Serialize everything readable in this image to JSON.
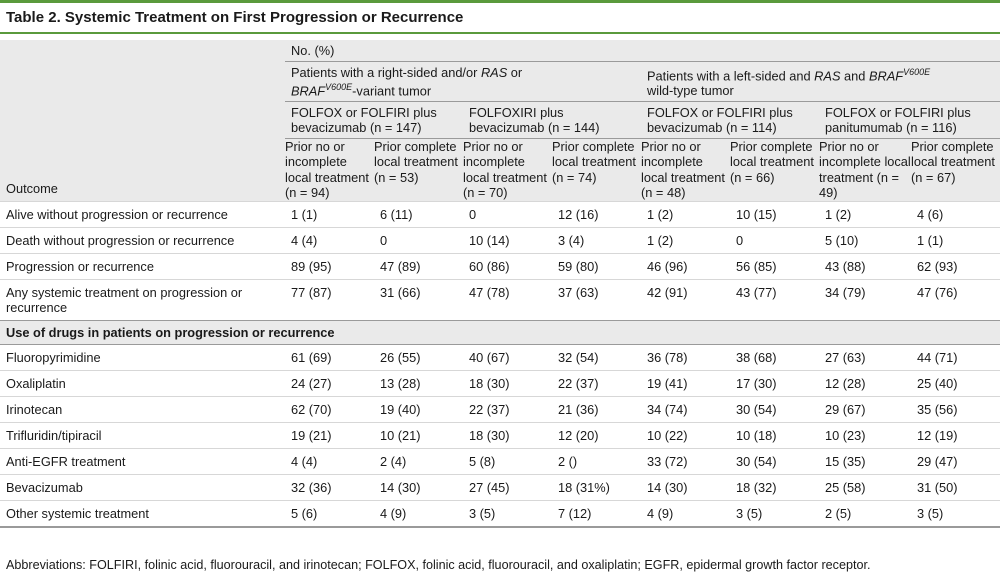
{
  "title": "Table 2. Systemic Treatment on First Progression or Recurrence",
  "header": {
    "no_pct": "No. (%)",
    "outcome": "Outcome",
    "group_right": {
      "pre": "Patients with a right-sided and/or ",
      "ras": "RAS",
      "or": " or ",
      "braf": "BRAF",
      "sup": "V600E",
      "post": "-variant tumor"
    },
    "group_left": {
      "pre": "Patients with a left-sided and ",
      "ras": "RAS",
      "and": " and ",
      "braf": "BRAF",
      "sup": "V600E",
      "post": " wild-type tumor"
    },
    "arms": [
      "FOLFOX or FOLFIRI plus bevacizumab (n = 147)",
      "FOLFOXIRI plus bevacizumab (n = 144)",
      "FOLFOX or FOLFIRI plus bevacizumab (n = 114)",
      "FOLFOX or FOLFIRI plus panitumumab (n = 116)"
    ],
    "subcols": [
      "Prior no or incomplete local treatment (n = 94)",
      "Prior complete local treatment (n = 53)",
      "Prior no or incomplete local treatment (n = 70)",
      "Prior complete local treatment (n = 74)",
      "Prior no or incomplete local treatment (n = 48)",
      "Prior complete local treatment (n = 66)",
      "Prior no or incomplete local treatment (n = 49)",
      "Prior complete local treatment (n = 67)"
    ]
  },
  "rows_top": [
    {
      "label": "Alive without progression or recurrence",
      "values": [
        "1 (1)",
        "6 (11)",
        "0",
        "12 (16)",
        "1 (2)",
        "10 (15)",
        "1 (2)",
        "4 (6)"
      ]
    },
    {
      "label": "Death without progression or recurrence",
      "values": [
        "4 (4)",
        "0",
        "10 (14)",
        "3 (4)",
        "1 (2)",
        "0",
        "5 (10)",
        "1 (1)"
      ]
    },
    {
      "label": "Progression or recurrence",
      "values": [
        "89 (95)",
        "47 (89)",
        "60 (86)",
        "59 (80)",
        "46 (96)",
        "56 (85)",
        "43 (88)",
        "62 (93)"
      ]
    },
    {
      "label": "Any systemic treatment on progression or recurrence",
      "values": [
        "77 (87)",
        "31 (66)",
        "47 (78)",
        "37 (63)",
        "42 (91)",
        "43 (77)",
        "34 (79)",
        "47 (76)"
      ]
    }
  ],
  "section_label": "Use of drugs in patients on progression or recurrence",
  "rows_drugs": [
    {
      "label": "Fluoropyrimidine",
      "values": [
        "61 (69)",
        "26 (55)",
        "40 (67)",
        "32 (54)",
        "36 (78)",
        "38 (68)",
        "27 (63)",
        "44 (71)"
      ]
    },
    {
      "label": "Oxaliplatin",
      "values": [
        "24 (27)",
        "13 (28)",
        "18 (30)",
        "22 (37)",
        "19 (41)",
        "17 (30)",
        "12 (28)",
        "25 (40)"
      ]
    },
    {
      "label": "Irinotecan",
      "values": [
        "62 (70)",
        "19 (40)",
        "22 (37)",
        "21 (36)",
        "34 (74)",
        "30 (54)",
        "29 (67)",
        "35 (56)"
      ]
    },
    {
      "label": "Trifluridin/tipiracil",
      "values": [
        "19 (21)",
        "10 (21)",
        "18 (30)",
        "12 (20)",
        "10 (22)",
        "10 (18)",
        "10 (23)",
        "12 (19)"
      ]
    },
    {
      "label": "Anti-EGFR treatment",
      "values": [
        "4 (4)",
        "2 (4)",
        "5 (8)",
        "2 ()",
        "33 (72)",
        "30 (54)",
        "15 (35)",
        "29 (47)"
      ]
    },
    {
      "label": "Bevacizumab",
      "values": [
        "32 (36)",
        "14 (30)",
        "27 (45)",
        "18 (31%)",
        "14 (30)",
        "18 (32)",
        "25 (58)",
        "31 (50)"
      ]
    },
    {
      "label": "Other systemic treatment",
      "values": [
        "5 (6)",
        "4 (9)",
        "3 (5)",
        "7 (12)",
        "4 (9)",
        "3 (5)",
        "2 (5)",
        "3 (5)"
      ]
    }
  ],
  "footnote": "Abbreviations: FOLFIRI, folinic acid, fluorouracil, and irinotecan; FOLFOX, folinic acid, fluorouracil, and oxaliplatin; EGFR, epidermal growth factor receptor."
}
